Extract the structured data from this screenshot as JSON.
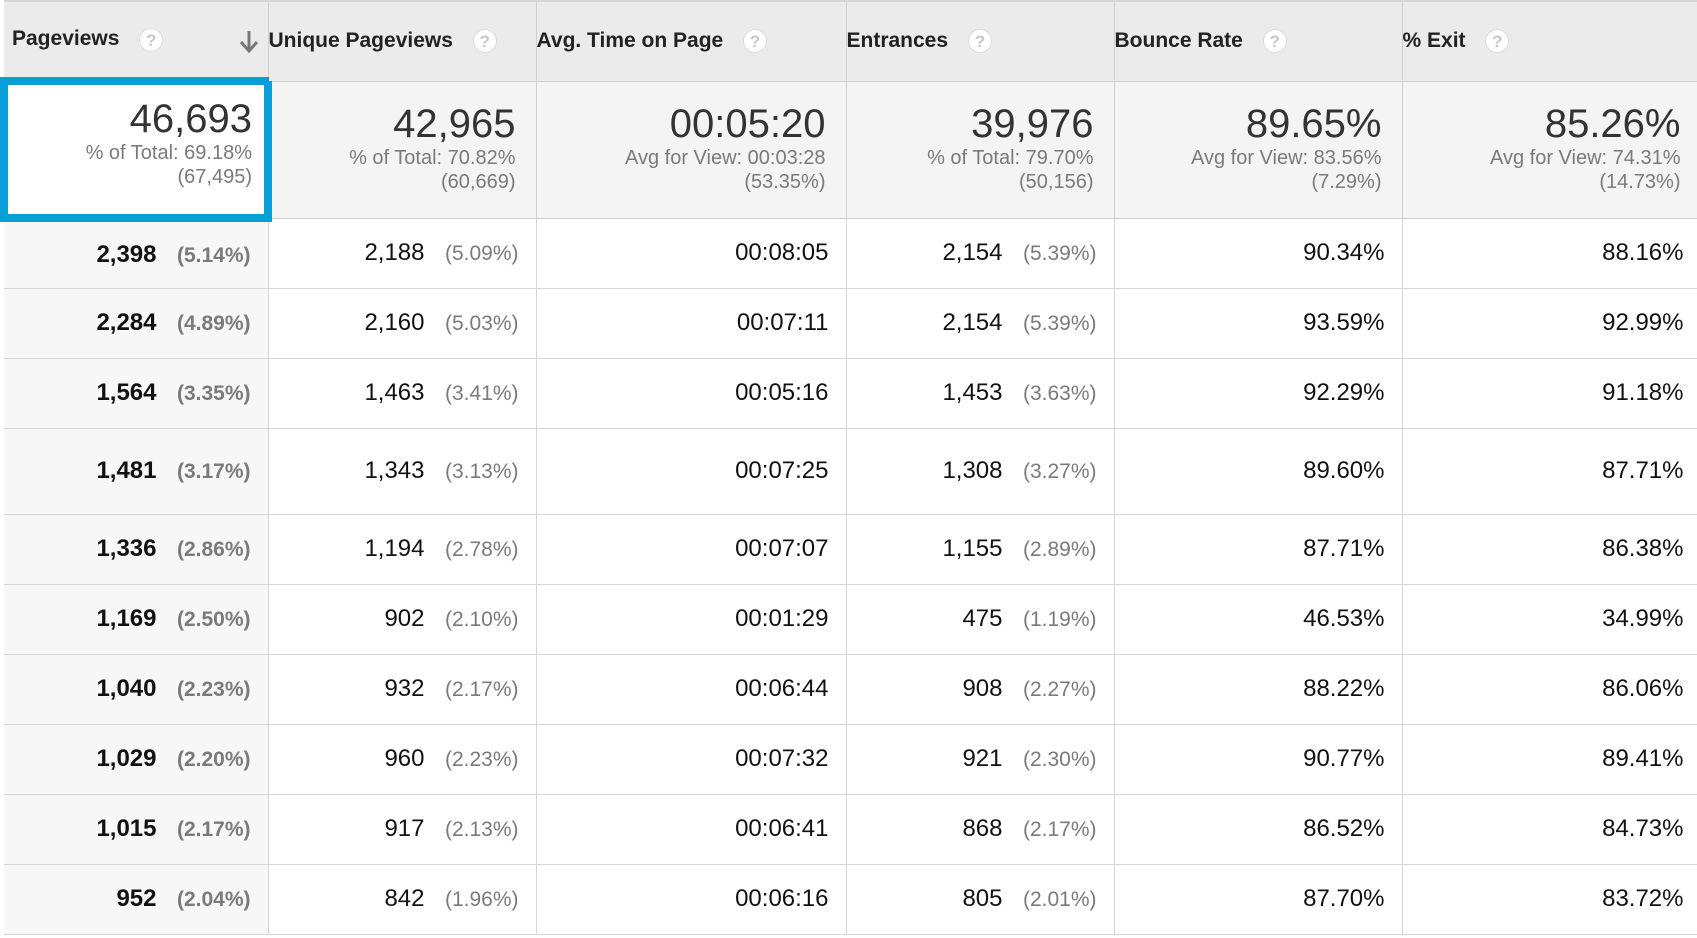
{
  "columns": [
    {
      "label": "Pageviews",
      "help": "?",
      "sorted": "descending"
    },
    {
      "label": "Unique Pageviews",
      "help": "?"
    },
    {
      "label": "Avg. Time on Page",
      "help": "?"
    },
    {
      "label": "Entrances",
      "help": "?"
    },
    {
      "label": "Bounce Rate",
      "help": "?"
    },
    {
      "label": "% Exit",
      "help": "?"
    }
  ],
  "totals": [
    {
      "value": "46,693",
      "line1": "% of Total: 69.18%",
      "line2": "(67,495)"
    },
    {
      "value": "42,965",
      "line1": "% of Total: 70.82%",
      "line2": "(60,669)"
    },
    {
      "value": "00:05:20",
      "line1": "Avg for View: 00:03:28",
      "line2": "(53.35%)"
    },
    {
      "value": "39,976",
      "line1": "% of Total: 79.70%",
      "line2": "(50,156)"
    },
    {
      "value": "89.65%",
      "line1": "Avg for View: 83.56%",
      "line2": "(7.29%)"
    },
    {
      "value": "85.26%",
      "line1": "Avg for View: 74.31%",
      "line2": "(14.73%)"
    }
  ],
  "rows": [
    {
      "pageviews": "2,398",
      "pageviews_pct": "(5.14%)",
      "unique": "2,188",
      "unique_pct": "(5.09%)",
      "avg_time": "00:08:05",
      "entrances": "2,154",
      "entrances_pct": "(5.39%)",
      "bounce": "90.34%",
      "exit": "88.16%"
    },
    {
      "pageviews": "2,284",
      "pageviews_pct": "(4.89%)",
      "unique": "2,160",
      "unique_pct": "(5.03%)",
      "avg_time": "00:07:11",
      "entrances": "2,154",
      "entrances_pct": "(5.39%)",
      "bounce": "93.59%",
      "exit": "92.99%"
    },
    {
      "pageviews": "1,564",
      "pageviews_pct": "(3.35%)",
      "unique": "1,463",
      "unique_pct": "(3.41%)",
      "avg_time": "00:05:16",
      "entrances": "1,453",
      "entrances_pct": "(3.63%)",
      "bounce": "92.29%",
      "exit": "91.18%"
    },
    {
      "pageviews": "1,481",
      "pageviews_pct": "(3.17%)",
      "unique": "1,343",
      "unique_pct": "(3.13%)",
      "avg_time": "00:07:25",
      "entrances": "1,308",
      "entrances_pct": "(3.27%)",
      "bounce": "89.60%",
      "exit": "87.71%"
    },
    {
      "pageviews": "1,336",
      "pageviews_pct": "(2.86%)",
      "unique": "1,194",
      "unique_pct": "(2.78%)",
      "avg_time": "00:07:07",
      "entrances": "1,155",
      "entrances_pct": "(2.89%)",
      "bounce": "87.71%",
      "exit": "86.38%"
    },
    {
      "pageviews": "1,169",
      "pageviews_pct": "(2.50%)",
      "unique": "902",
      "unique_pct": "(2.10%)",
      "avg_time": "00:01:29",
      "entrances": "475",
      "entrances_pct": "(1.19%)",
      "bounce": "46.53%",
      "exit": "34.99%"
    },
    {
      "pageviews": "1,040",
      "pageviews_pct": "(2.23%)",
      "unique": "932",
      "unique_pct": "(2.17%)",
      "avg_time": "00:06:44",
      "entrances": "908",
      "entrances_pct": "(2.27%)",
      "bounce": "88.22%",
      "exit": "86.06%"
    },
    {
      "pageviews": "1,029",
      "pageviews_pct": "(2.20%)",
      "unique": "960",
      "unique_pct": "(2.23%)",
      "avg_time": "00:07:32",
      "entrances": "921",
      "entrances_pct": "(2.30%)",
      "bounce": "90.77%",
      "exit": "89.41%"
    },
    {
      "pageviews": "1,015",
      "pageviews_pct": "(2.17%)",
      "unique": "917",
      "unique_pct": "(2.13%)",
      "avg_time": "00:06:41",
      "entrances": "868",
      "entrances_pct": "(2.17%)",
      "bounce": "86.52%",
      "exit": "84.73%"
    },
    {
      "pageviews": "952",
      "pageviews_pct": "(2.04%)",
      "unique": "842",
      "unique_pct": "(1.96%)",
      "avg_time": "00:06:16",
      "entrances": "805",
      "entrances_pct": "(2.01%)",
      "bounce": "87.70%",
      "exit": "83.72%"
    }
  ],
  "colors": {
    "selected_border": "#0a9ed9",
    "header_bg": "#ebebeb",
    "totals_bg": "#f4f4f4"
  }
}
